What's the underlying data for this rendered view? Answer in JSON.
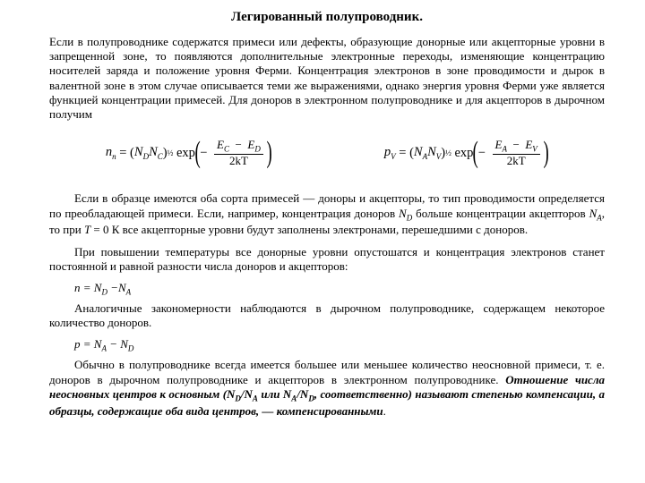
{
  "title": "Легированный полупроводник.",
  "p1": "Если в полупроводнике содержатся примеси или дефекты, образующие донорные или акцепторные уровни в запрещенной зоне, то появляются дополнительные электронные переходы, изменяющие концентрацию носителей заряда и положение уровня Ферми. Концентрация электронов в зоне проводимости и дырок в валентной зоне в этом случае описывается теми же выражениями, однако энергия уровня Ферми уже является функцией концентрации примесей. Для доноров в электронном полупроводнике и для акцепторов в дырочном получим",
  "eq1": {
    "lhs_sym": "n",
    "lhs_sub": "n",
    "fac1": "N",
    "fac1_sub": "D",
    "fac2": "N",
    "fac2_sub": "C",
    "pow": "½",
    "fn": "exp",
    "num_a": "E",
    "num_a_sub": "C",
    "num_b": "E",
    "num_b_sub": "D",
    "den": "2kT"
  },
  "eq2": {
    "lhs_sym": "p",
    "lhs_sub": "V",
    "fac1": "N",
    "fac1_sub": "A",
    "fac2": "N",
    "fac2_sub": "V",
    "pow": "½",
    "fn": "exp",
    "num_a": "E",
    "num_a_sub": "A",
    "num_b": "E",
    "num_b_sub": "V",
    "den": "2kT"
  },
  "p2_a": "Если в образце имеются оба сорта примесей — доноры и акцепторы, то тип проводимости определяется по преобладающей примеси. Если, например, концентрация доноров ",
  "p2_b": " больше концентрации акцепторов ",
  "p2_c": ", то при ",
  "p2_d": " = 0 К все акцепторные уровни будут заполнены электронами, перешедшими с доноров.",
  "ND": "N",
  "ND_sub": "D",
  "NA": "N",
  "NA_sub": "A",
  "Tvar": "T",
  "p3": "При повышении температуры все донорные уровни опустошатся и концентрация электронов станет постоянной и равной разности числа доноров и акцепторов:",
  "eqline1_a": "n = N",
  "eqline1_b": "D",
  "eqline1_c": " −N",
  "eqline1_d": "A",
  "p4": "Аналогичные закономерности наблюдаются в дырочном полупроводнике, содержащем некоторое количество доноров.",
  "eqline2_a": "p = N",
  "eqline2_b": "A",
  "eqline2_c": " − N",
  "eqline2_d": "D",
  "p5_a": "Обычно в полупроводнике всегда имеется большее или меньшее количество неосновной примеси, т. е. доноров в дырочном полупроводнике и акцепторов в электронном полупроводнике. ",
  "p5_b": "Отношение числа неосновных центров к основным (N",
  "p5_c": "/N",
  "p5_d": " или N",
  "p5_e": "/N",
  "p5_f": ", соответственно) называют степенью компенсации, а образцы, содержащие оба вида центров, — компенсированными",
  "p5_g": "."
}
